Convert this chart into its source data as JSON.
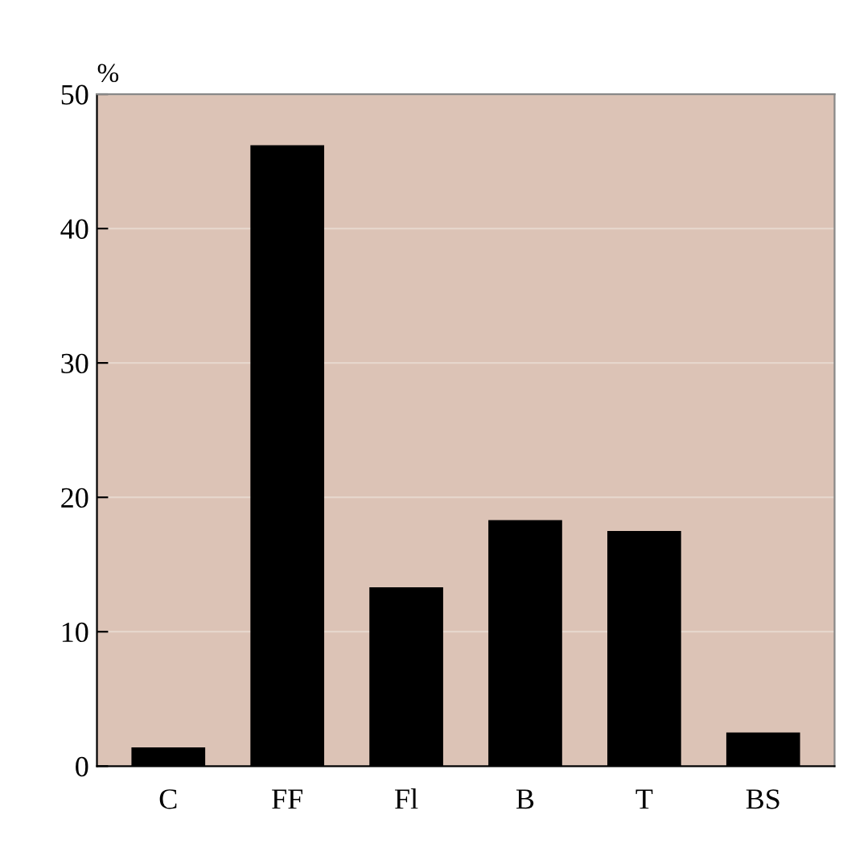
{
  "chart_data": {
    "type": "bar",
    "ylabel": "%",
    "categories": [
      "C",
      "FF",
      "Fl",
      "B",
      "T",
      "BS"
    ],
    "values": [
      1.4,
      46.2,
      13.3,
      18.3,
      17.5,
      2.5
    ],
    "color": "#000000",
    "ylim": [
      0,
      50
    ],
    "yticks": [
      0,
      10,
      20,
      30,
      40,
      50
    ],
    "grid": "y"
  }
}
